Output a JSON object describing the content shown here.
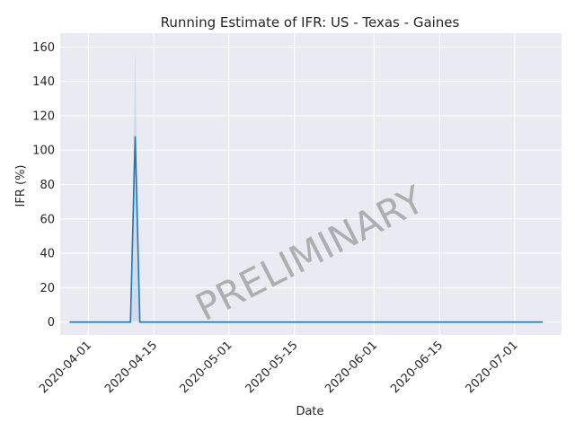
{
  "chart_data": {
    "type": "line",
    "title": "Running Estimate of IFR: US - Texas - Gaines",
    "xlabel": "Date",
    "ylabel": "IFR (%)",
    "watermark": "PRELIMINARY",
    "x_range": [
      "2020-03-26",
      "2020-07-11"
    ],
    "ylim": [
      -7.5,
      168
    ],
    "grid": true,
    "x_ticks": [
      "2020-04-01",
      "2020-04-15",
      "2020-05-01",
      "2020-05-15",
      "2020-06-01",
      "2020-06-15",
      "2020-07-01"
    ],
    "y_ticks": [
      0,
      20,
      40,
      60,
      80,
      100,
      120,
      140,
      160
    ],
    "line_color": "#1f77b4",
    "band_color": "#1f77b4",
    "background": "#eaeaf2",
    "series": [
      {
        "points": [
          {
            "x": "2020-03-28",
            "y": 0
          },
          {
            "x": "2020-04-10",
            "y": 0
          },
          {
            "x": "2020-04-11",
            "y": 108
          },
          {
            "x": "2020-04-12",
            "y": 0
          },
          {
            "x": "2020-07-07",
            "y": 0
          }
        ],
        "band": [
          {
            "x": "2020-04-10",
            "lo": 0,
            "hi": 0
          },
          {
            "x": "2020-04-11",
            "lo": 0,
            "hi": 160
          },
          {
            "x": "2020-04-12",
            "lo": 0,
            "hi": 0
          }
        ]
      }
    ]
  }
}
